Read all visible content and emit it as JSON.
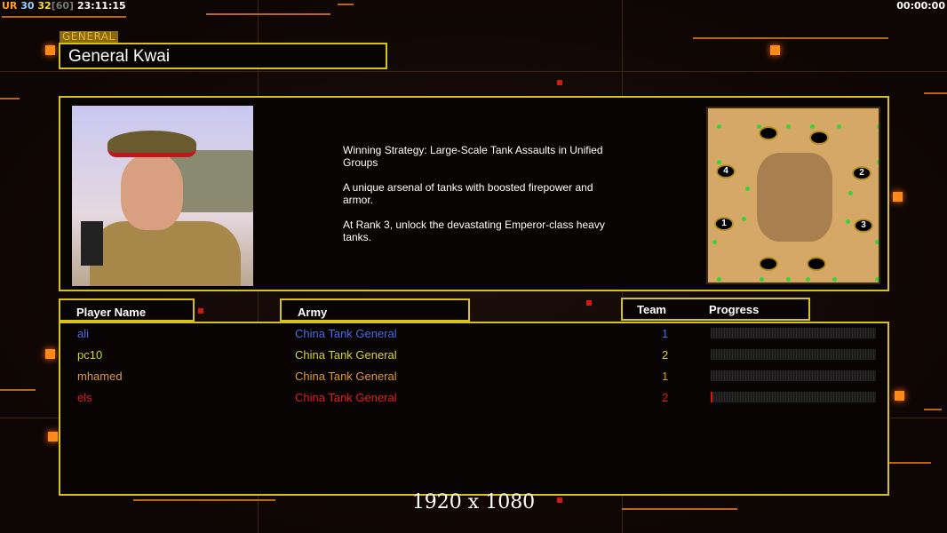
{
  "hud": {
    "ur": "UR",
    "a": "30",
    "b": "32",
    "c": "[60]",
    "clock": "23:11:15",
    "timer": "00:00:00"
  },
  "general": {
    "tag": "GENERAL",
    "name": "General Kwai",
    "description": "Winning Strategy: Large-Scale Tank Assaults in Unified\n Groups\n\nA unique arsenal of tanks with boosted firepower and\n armor.\n\nAt Rank 3, unlock the devastating Emperor-class heavy\n tanks."
  },
  "map": {
    "start_positions": [
      "1",
      "2",
      "3",
      "4"
    ]
  },
  "headers": {
    "player": "Player Name",
    "army": "Army",
    "team": "Team",
    "progress": "Progress"
  },
  "players": [
    {
      "name": "ali",
      "army": "China Tank General",
      "team": "1",
      "color": "#4a6ae8",
      "progress": 0
    },
    {
      "name": "pc10",
      "army": "China Tank General",
      "team": "2",
      "color": "#d6d62a",
      "progress": 0
    },
    {
      "name": "mhamed",
      "army": "China Tank General",
      "team": "1",
      "color": "#e09a30",
      "progress": 0
    },
    {
      "name": "els",
      "army": "China Tank General",
      "team": "2",
      "color": "#e81a1a",
      "progress": 0.01
    }
  ],
  "resolution": "1920 x 1080",
  "colors": {
    "frame": "#d6c21a",
    "accent": "#ff8a1a"
  }
}
